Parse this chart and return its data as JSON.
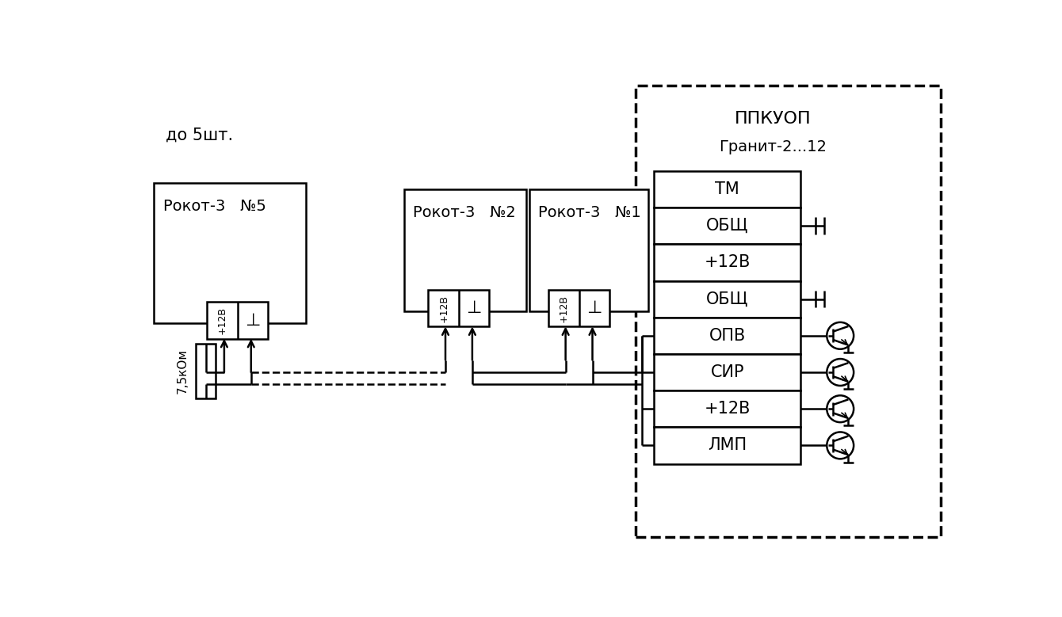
{
  "bg_color": "#ffffff",
  "line_color": "#000000",
  "ppk_label1": "ППКУОП",
  "ppk_label2": "Гранит-2...12",
  "ppk_rows": [
    "ТМ",
    "ОБЩ",
    "+12В",
    "ОБЩ",
    "ОПВ",
    "СИР",
    "+12В",
    "ЛМП"
  ],
  "do_5_label": "до 5шт.",
  "resistor_label": "7,5кОм",
  "rokot5_label": "Рокот-3   №5",
  "rokot2_label": "Рокот-3   №2",
  "rokot1_label": "Рокот-3   №1",
  "term_label1": "+12В",
  "term_label2": "⊥"
}
